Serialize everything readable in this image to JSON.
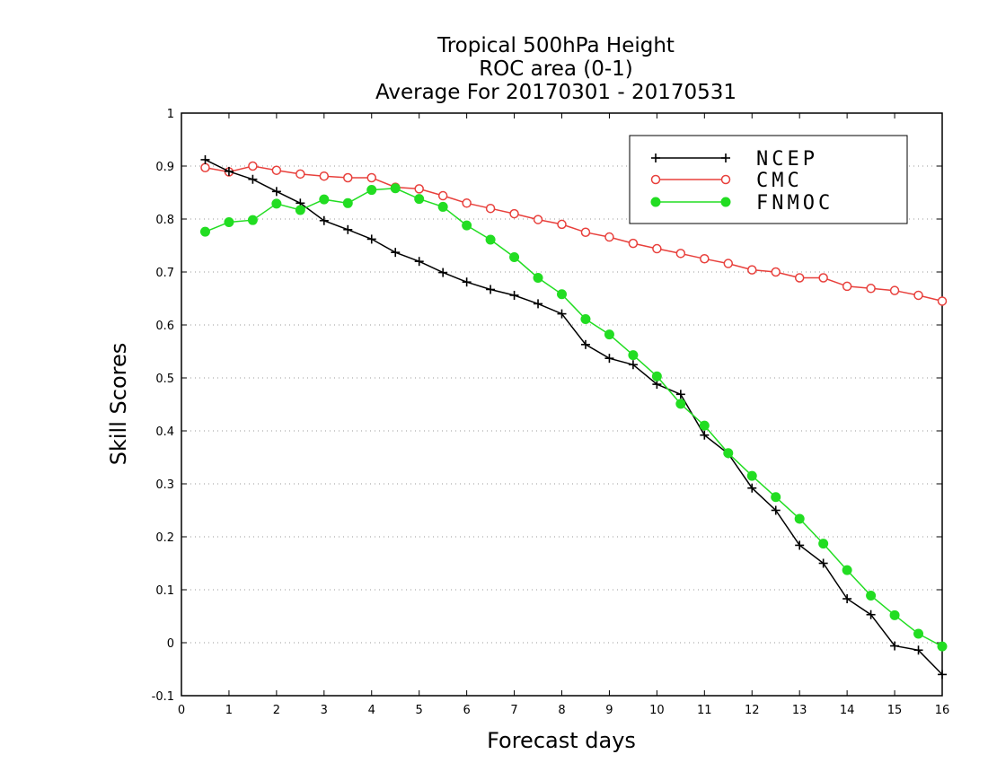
{
  "chart_data": {
    "type": "line",
    "title_lines": [
      "Tropical 500hPa Height",
      "ROC area (0-1)",
      "Average For 20170301 - 20170531"
    ],
    "xlabel": "Forecast days",
    "ylabel": "Skill Scores",
    "xlim": [
      0,
      16
    ],
    "ylim": [
      -0.1,
      1
    ],
    "xticks": [
      0,
      1,
      2,
      3,
      4,
      5,
      6,
      7,
      8,
      9,
      10,
      11,
      12,
      13,
      14,
      15,
      16
    ],
    "yticks": [
      -0.1,
      0,
      0.1,
      0.2,
      0.3,
      0.4,
      0.5,
      0.6,
      0.7,
      0.8,
      0.9,
      1
    ],
    "ytick_labels": [
      "-0.1",
      "0",
      "0.1",
      "0.2",
      "0.3",
      "0.4",
      "0.5",
      "0.6",
      "0.7",
      "0.8",
      "0.9",
      "1"
    ],
    "grid": "horizontal dotted",
    "legend_position": "top-right",
    "x": [
      0.5,
      1,
      1.5,
      2,
      2.5,
      3,
      3.5,
      4,
      4.5,
      5,
      5.5,
      6,
      6.5,
      7,
      7.5,
      8,
      8.5,
      9,
      9.5,
      10,
      10.5,
      11,
      11.5,
      12,
      12.5,
      13,
      13.5,
      14,
      14.5,
      15,
      15.5,
      16
    ],
    "series": [
      {
        "name": "NCEP",
        "color": "#000000",
        "marker": "plus",
        "values": [
          0.912,
          0.89,
          0.875,
          0.852,
          0.83,
          0.797,
          0.78,
          0.762,
          0.737,
          0.72,
          0.699,
          0.681,
          0.667,
          0.656,
          0.64,
          0.621,
          0.563,
          0.537,
          0.525,
          0.488,
          0.469,
          0.392,
          0.357,
          0.292,
          0.25,
          0.184,
          0.15,
          0.083,
          0.053,
          -0.006,
          -0.014,
          -0.06
        ]
      },
      {
        "name": "CMC",
        "color": "#e8403c",
        "marker": "open-circle",
        "values": [
          0.897,
          0.889,
          0.9,
          0.892,
          0.885,
          0.881,
          0.878,
          0.878,
          0.86,
          0.857,
          0.844,
          0.83,
          0.82,
          0.81,
          0.799,
          0.79,
          0.775,
          0.766,
          0.754,
          0.744,
          0.735,
          0.725,
          0.716,
          0.704,
          0.7,
          0.689,
          0.689,
          0.673,
          0.669,
          0.665,
          0.656,
          0.645
        ]
      },
      {
        "name": "FNMOC",
        "color": "#22dd22",
        "marker": "filled-circle",
        "values": [
          0.776,
          0.794,
          0.798,
          0.829,
          0.817,
          0.837,
          0.83,
          0.855,
          0.858,
          0.838,
          0.823,
          0.788,
          0.761,
          0.728,
          0.689,
          0.658,
          0.611,
          0.582,
          0.543,
          0.503,
          0.451,
          0.41,
          0.358,
          0.315,
          0.275,
          0.234,
          0.187,
          0.137,
          0.089,
          0.052,
          0.017,
          -0.007
        ]
      }
    ]
  }
}
